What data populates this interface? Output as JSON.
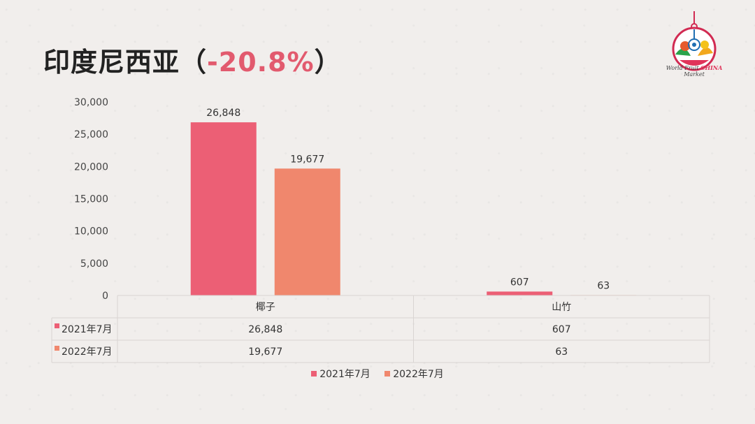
{
  "title": {
    "main": "印度尼西亚（",
    "pct": "-20.8%",
    "close": "）"
  },
  "logo": {
    "caption_pre": "World Fruit ",
    "caption_china": "CHINA",
    "caption_post": " Market"
  },
  "colors": {
    "series_2021": "#ec5f75",
    "series_2022": "#f0876d",
    "grid": "#d9d4d2"
  },
  "chart_data": {
    "type": "bar",
    "categories": [
      "椰子",
      "山竹"
    ],
    "series": [
      {
        "name": "2021年7月",
        "values": [
          26848,
          607
        ],
        "labels": [
          "26,848",
          "607"
        ]
      },
      {
        "name": "2022年7月",
        "values": [
          19677,
          63
        ],
        "labels": [
          "19,677",
          "63"
        ]
      }
    ],
    "ylim": [
      0,
      30000
    ],
    "yticks": [
      0,
      5000,
      10000,
      15000,
      20000,
      25000,
      30000
    ],
    "ytick_labels": [
      "0",
      "5,000",
      "10,000",
      "15,000",
      "20,000",
      "25,000",
      "30,000"
    ],
    "legend_position": "bottom",
    "data_table": true
  }
}
